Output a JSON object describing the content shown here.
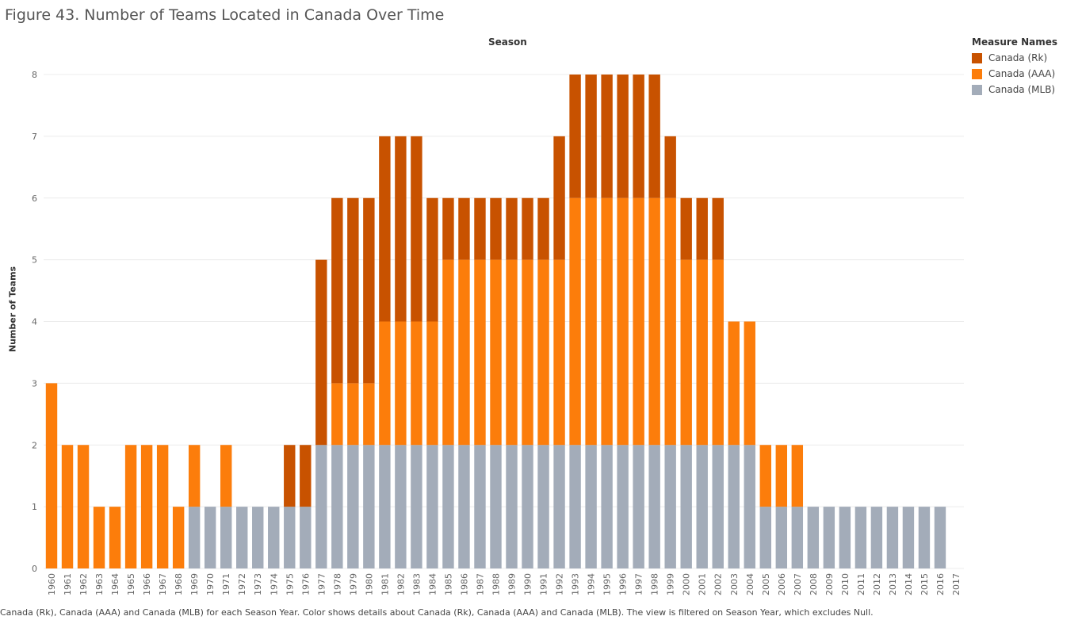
{
  "title": "Figure 43. Number of Teams Located in Canada Over Time",
  "footer": "Canada (Rk), Canada (AAA) and Canada (MLB) for each Season Year.  Color shows details about Canada (Rk), Canada (AAA) and Canada (MLB). The view is filtered on Season Year, which excludes Null.",
  "legend": {
    "title": "Measure Names",
    "items": [
      {
        "label": "Canada (Rk)",
        "color": "#c85200"
      },
      {
        "label": "Canada (AAA)",
        "color": "#fc7d0b"
      },
      {
        "label": "Canada (MLB)",
        "color": "#a3acb9"
      }
    ]
  },
  "chart_data": {
    "type": "bar",
    "stacked": true,
    "xlabel": "Season",
    "ylabel": "Number of Teams",
    "ylim": [
      0,
      8
    ],
    "yticks": [
      0,
      1,
      2,
      3,
      4,
      5,
      6,
      7,
      8
    ],
    "grid": true,
    "legend_position": "top-right",
    "categories": [
      "1960",
      "1961",
      "1962",
      "1963",
      "1964",
      "1965",
      "1966",
      "1967",
      "1968",
      "1969",
      "1970",
      "1971",
      "1972",
      "1973",
      "1974",
      "1975",
      "1976",
      "1977",
      "1978",
      "1979",
      "1980",
      "1981",
      "1982",
      "1983",
      "1984",
      "1985",
      "1986",
      "1987",
      "1988",
      "1989",
      "1990",
      "1991",
      "1992",
      "1993",
      "1994",
      "1995",
      "1996",
      "1997",
      "1998",
      "1999",
      "2000",
      "2001",
      "2002",
      "2003",
      "2004",
      "2005",
      "2006",
      "2007",
      "2008",
      "2009",
      "2010",
      "2011",
      "2012",
      "2013",
      "2014",
      "2015",
      "2016",
      "2017"
    ],
    "series": [
      {
        "name": "Canada (MLB)",
        "color": "#a3acb9",
        "values": [
          0,
          0,
          0,
          0,
          0,
          0,
          0,
          0,
          0,
          1,
          1,
          1,
          1,
          1,
          1,
          1,
          1,
          2,
          2,
          2,
          2,
          2,
          2,
          2,
          2,
          2,
          2,
          2,
          2,
          2,
          2,
          2,
          2,
          2,
          2,
          2,
          2,
          2,
          2,
          2,
          2,
          2,
          2,
          2,
          2,
          1,
          1,
          1,
          1,
          1,
          1,
          1,
          1,
          1,
          1,
          1,
          1,
          0
        ]
      },
      {
        "name": "Canada (AAA)",
        "color": "#fc7d0b",
        "values": [
          3,
          2,
          2,
          1,
          1,
          2,
          2,
          2,
          1,
          1,
          0,
          1,
          0,
          0,
          0,
          0,
          0,
          0,
          1,
          1,
          1,
          2,
          2,
          2,
          2,
          3,
          3,
          3,
          3,
          3,
          3,
          3,
          3,
          4,
          4,
          4,
          4,
          4,
          4,
          4,
          3,
          3,
          3,
          2,
          2,
          1,
          1,
          1,
          0,
          0,
          0,
          0,
          0,
          0,
          0,
          0,
          0,
          0
        ]
      },
      {
        "name": "Canada (Rk)",
        "color": "#c85200",
        "values": [
          0,
          0,
          0,
          0,
          0,
          0,
          0,
          0,
          0,
          0,
          0,
          0,
          0,
          0,
          0,
          1,
          1,
          3,
          3,
          3,
          3,
          3,
          3,
          3,
          2,
          1,
          1,
          1,
          1,
          1,
          1,
          1,
          2,
          2,
          2,
          2,
          2,
          2,
          2,
          1,
          1,
          1,
          1,
          0,
          0,
          0,
          0,
          0,
          0,
          0,
          0,
          0,
          0,
          0,
          0,
          0,
          0,
          0
        ]
      }
    ]
  }
}
